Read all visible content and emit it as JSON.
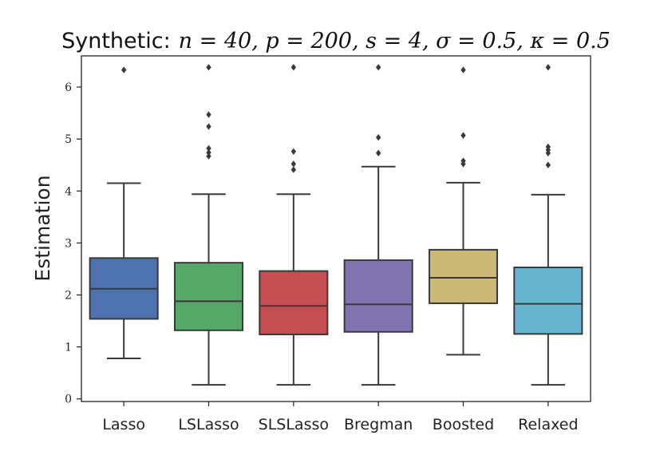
{
  "chart_data": {
    "type": "box",
    "title": "Synthetic:",
    "title_math": "n = 40, p = 200, s = 4, σ = 0.5, κ = 0.5",
    "xlabel": "",
    "ylabel": "Estimation",
    "ylim": [
      -0.05,
      6.6
    ],
    "yticks": [
      0,
      1,
      2,
      3,
      4,
      5,
      6
    ],
    "ytick_labels": [
      "0",
      "1",
      "2",
      "3",
      "4",
      "5",
      "6"
    ],
    "categories": [
      "Lasso",
      "LSLasso",
      "SLSLasso",
      "Bregman",
      "Boosted",
      "Relaxed"
    ],
    "colors": [
      "#4c72b0",
      "#55a868",
      "#c44e52",
      "#8172b2",
      "#ccb974",
      "#64b5cd"
    ],
    "boxes": [
      {
        "name": "Lasso",
        "whisker_low": 0.78,
        "q1": 1.54,
        "median": 2.12,
        "q3": 2.71,
        "whisker_high": 4.15,
        "outliers": [
          6.33
        ]
      },
      {
        "name": "LSLasso",
        "whisker_low": 0.27,
        "q1": 1.32,
        "median": 1.88,
        "q3": 2.62,
        "whisker_high": 3.94,
        "outliers": [
          6.38,
          5.47,
          5.24,
          4.82,
          4.74,
          4.67
        ]
      },
      {
        "name": "SLSLasso",
        "whisker_low": 0.27,
        "q1": 1.24,
        "median": 1.79,
        "q3": 2.46,
        "whisker_high": 3.94,
        "outliers": [
          6.38,
          4.76,
          4.52,
          4.41
        ]
      },
      {
        "name": "Bregman",
        "whisker_low": 0.27,
        "q1": 1.29,
        "median": 1.82,
        "q3": 2.67,
        "whisker_high": 4.47,
        "outliers": [
          6.38,
          5.03,
          4.73
        ]
      },
      {
        "name": "Boosted",
        "whisker_low": 0.85,
        "q1": 1.84,
        "median": 2.33,
        "q3": 2.87,
        "whisker_high": 4.16,
        "outliers": [
          6.33,
          5.07,
          4.58,
          4.52
        ]
      },
      {
        "name": "Relaxed",
        "whisker_low": 0.27,
        "q1": 1.25,
        "median": 1.83,
        "q3": 2.53,
        "whisker_high": 3.93,
        "outliers": [
          6.38,
          4.85,
          4.79,
          4.73,
          4.5
        ]
      }
    ]
  }
}
